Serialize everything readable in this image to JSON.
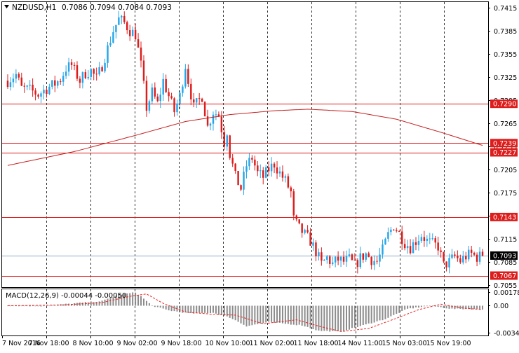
{
  "header": {
    "symbol": "NZDUSD,H1",
    "ohlc": "0.7086 0.7094 0.7084 0.7093"
  },
  "macd": {
    "label": "MACD(12,26,9) -0.00044 -0.00050",
    "ticks": [
      {
        "value": 0.00178,
        "label": "0.00178"
      },
      {
        "value": 0.0,
        "label": "0.00"
      },
      {
        "value": -0.00342,
        "label": "-0.00342"
      }
    ]
  },
  "colors": {
    "bull": "#26a6e8",
    "bear": "#dd1c1c",
    "levels": "#dd1c1c",
    "moving_average": "#c62020",
    "current_price": "#8fa9c8",
    "histogram": "#8c8c8c",
    "signal": "#ee2222",
    "grid": "#000000"
  },
  "chart_data": {
    "type": "candlestick",
    "symbol": "NZDUSD",
    "timeframe": "H1",
    "ylim": [
      0.7052,
      0.7422
    ],
    "y_ticks": [
      "0.7415",
      "0.7385",
      "0.7355",
      "0.7325",
      "0.7295",
      "0.7265",
      "0.7235",
      "0.7205",
      "0.7175",
      "0.7145",
      "0.7115",
      "0.7085",
      "0.7055"
    ],
    "x_ticks": [
      "7 Nov 2016",
      "7 Nov 18:00",
      "8 Nov 10:00",
      "9 Nov 02:00",
      "9 Nov 18:00",
      "10 Nov 10:00",
      "11 Nov 02:00",
      "11 Nov 18:00",
      "14 Nov 11:00",
      "15 Nov 03:00",
      "15 Nov 19:00"
    ],
    "grid_ticks": [
      1,
      2,
      3,
      4,
      5,
      6,
      7,
      8,
      9,
      10
    ],
    "horizontal_levels": [
      "0.7290",
      "0.7239",
      "0.7227",
      "0.7143",
      "0.7067"
    ],
    "current_price": "0.7093",
    "close_path": [
      [
        0,
        0.732
      ],
      [
        3,
        0.7328
      ],
      [
        5,
        0.731
      ],
      [
        8,
        0.7308
      ],
      [
        11,
        0.7302
      ],
      [
        14,
        0.731
      ],
      [
        17,
        0.7316
      ],
      [
        19,
        0.7322
      ],
      [
        21,
        0.7336
      ],
      [
        23,
        0.734
      ],
      [
        24,
        0.7333
      ],
      [
        26,
        0.732
      ],
      [
        28,
        0.733
      ],
      [
        30,
        0.7333
      ],
      [
        32,
        0.7322
      ],
      [
        34,
        0.734
      ],
      [
        36,
        0.7362
      ],
      [
        38,
        0.7385
      ],
      [
        40,
        0.74
      ],
      [
        42,
        0.7395
      ],
      [
        44,
        0.7385
      ],
      [
        46,
        0.738
      ],
      [
        48,
        0.734
      ],
      [
        50,
        0.7285
      ],
      [
        52,
        0.7305
      ],
      [
        54,
        0.729
      ],
      [
        56,
        0.732
      ],
      [
        58,
        0.73
      ],
      [
        60,
        0.728
      ],
      [
        62,
        0.73
      ],
      [
        64,
        0.734
      ],
      [
        65,
        0.732
      ],
      [
        67,
        0.7285
      ],
      [
        68,
        0.729
      ],
      [
        70,
        0.73
      ],
      [
        72,
        0.726
      ],
      [
        74,
        0.728
      ],
      [
        76,
        0.7275
      ],
      [
        78,
        0.724
      ],
      [
        79,
        0.7255
      ],
      [
        80,
        0.7225
      ],
      [
        82,
        0.7195
      ],
      [
        84,
        0.718
      ],
      [
        86,
        0.721
      ],
      [
        88,
        0.722
      ],
      [
        90,
        0.72
      ],
      [
        92,
        0.7195
      ],
      [
        94,
        0.7205
      ],
      [
        96,
        0.7212
      ],
      [
        98,
        0.72
      ],
      [
        100,
        0.719
      ],
      [
        102,
        0.7175
      ],
      [
        103,
        0.714
      ],
      [
        105,
        0.7128
      ],
      [
        107,
        0.712
      ],
      [
        109,
        0.7112
      ],
      [
        111,
        0.7098
      ],
      [
        113,
        0.7082
      ],
      [
        115,
        0.709
      ],
      [
        117,
        0.7082
      ],
      [
        119,
        0.7088
      ],
      [
        121,
        0.7085
      ],
      [
        123,
        0.7088
      ],
      [
        125,
        0.708
      ],
      [
        127,
        0.709
      ],
      [
        129,
        0.7095
      ],
      [
        131,
        0.7088
      ],
      [
        133,
        0.7085
      ],
      [
        135,
        0.71
      ],
      [
        137,
        0.712
      ],
      [
        139,
        0.7132
      ],
      [
        141,
        0.7122
      ],
      [
        143,
        0.711
      ],
      [
        145,
        0.7104
      ],
      [
        147,
        0.7112
      ],
      [
        149,
        0.712
      ],
      [
        151,
        0.7112
      ],
      [
        153,
        0.7108
      ],
      [
        155,
        0.7105
      ],
      [
        157,
        0.708
      ],
      [
        159,
        0.7085
      ],
      [
        161,
        0.7092
      ],
      [
        163,
        0.7086
      ],
      [
        165,
        0.7092
      ],
      [
        167,
        0.7095
      ],
      [
        169,
        0.7091
      ],
      [
        171,
        0.7093
      ]
    ],
    "moving_average": [
      [
        0,
        0.721
      ],
      [
        24,
        0.7228
      ],
      [
        46,
        0.7249
      ],
      [
        64,
        0.7267
      ],
      [
        80,
        0.7276
      ],
      [
        96,
        0.7281
      ],
      [
        108,
        0.7283
      ],
      [
        124,
        0.728
      ],
      [
        140,
        0.727
      ],
      [
        156,
        0.7253
      ],
      [
        171,
        0.7236
      ]
    ],
    "macd_histogram": [
      [
        0,
        0.0
      ],
      [
        12,
        -5e-05
      ],
      [
        24,
        0.0003
      ],
      [
        34,
        0.0006
      ],
      [
        40,
        0.0014
      ],
      [
        46,
        0.0017
      ],
      [
        48,
        0.0012
      ],
      [
        52,
        0.0
      ],
      [
        58,
        -0.0006
      ],
      [
        66,
        -0.001
      ],
      [
        74,
        -0.0009
      ],
      [
        80,
        -0.0015
      ],
      [
        86,
        -0.0026
      ],
      [
        94,
        -0.0021
      ],
      [
        100,
        -0.0023
      ],
      [
        106,
        -0.0025
      ],
      [
        112,
        -0.0032
      ],
      [
        120,
        -0.0033
      ],
      [
        128,
        -0.0025
      ],
      [
        136,
        -0.0017
      ],
      [
        144,
        -0.0004
      ],
      [
        152,
        0.0
      ],
      [
        160,
        -0.0004
      ],
      [
        171,
        -0.00044
      ]
    ],
    "macd_signal": [
      [
        0,
        0.0
      ],
      [
        20,
        0.0001
      ],
      [
        34,
        0.0004
      ],
      [
        44,
        0.0012
      ],
      [
        50,
        0.0015
      ],
      [
        56,
        0.0003
      ],
      [
        64,
        -0.0008
      ],
      [
        74,
        -0.0011
      ],
      [
        82,
        -0.0012
      ],
      [
        92,
        -0.0023
      ],
      [
        104,
        -0.0018
      ],
      [
        112,
        -0.0026
      ],
      [
        120,
        -0.0033
      ],
      [
        130,
        -0.0029
      ],
      [
        140,
        -0.0016
      ],
      [
        148,
        -0.0005
      ],
      [
        156,
        0.0002
      ],
      [
        164,
        -0.0003
      ],
      [
        171,
        -0.0005
      ]
    ]
  }
}
